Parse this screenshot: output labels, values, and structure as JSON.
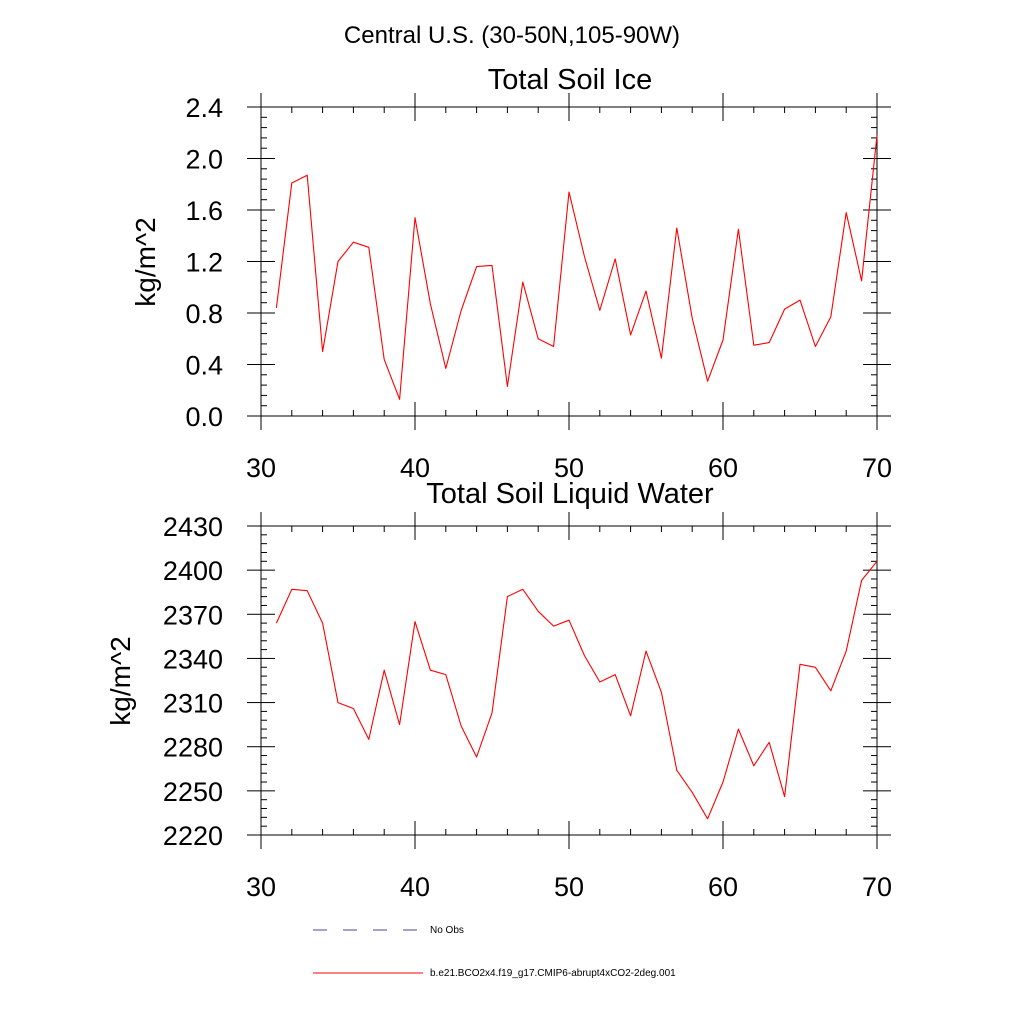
{
  "title": "Central U.S. (30-50N,105-90W)",
  "legend": [
    {
      "label": "No Obs",
      "style": "dashed",
      "color": "#4a4a8c"
    },
    {
      "label": "b.e21.BCO2x4.f19_g17.CMIP6-abrupt4xCO2-2deg.001",
      "style": "solid",
      "color": "#ff0000"
    }
  ],
  "chart_data": [
    {
      "type": "line",
      "title": "Total Soil Ice",
      "ylabel": "kg/m^2",
      "xlabel": "",
      "xlim": [
        30,
        70
      ],
      "ylim": [
        0.0,
        2.4
      ],
      "xticks": [
        30,
        40,
        50,
        60,
        70
      ],
      "xtick_labels": [
        "30",
        "40",
        "50",
        "60",
        "70"
      ],
      "yticks": [
        0.0,
        0.4,
        0.8,
        1.2,
        1.6,
        2.0,
        2.4
      ],
      "ytick_labels": [
        "0.0",
        "0.4",
        "0.8",
        "1.2",
        "1.6",
        "2.0",
        "2.4"
      ],
      "grid": false,
      "x": [
        31,
        32,
        33,
        34,
        35,
        36,
        37,
        38,
        39,
        40,
        41,
        42,
        43,
        44,
        45,
        46,
        47,
        48,
        49,
        50,
        51,
        52,
        53,
        54,
        55,
        56,
        57,
        58,
        59,
        60,
        61,
        62,
        63,
        64,
        65,
        66,
        67,
        68,
        69,
        70
      ],
      "series": [
        {
          "color": "#ff0000",
          "values": [
            0.84,
            1.81,
            1.87,
            0.5,
            1.2,
            1.35,
            1.31,
            0.44,
            0.13,
            1.54,
            0.87,
            0.37,
            0.82,
            1.16,
            1.17,
            0.23,
            1.04,
            0.6,
            0.54,
            1.74,
            1.24,
            0.82,
            1.22,
            0.63,
            0.97,
            0.45,
            1.46,
            0.76,
            0.27,
            0.59,
            1.45,
            0.55,
            0.57,
            0.83,
            0.9,
            0.54,
            0.77,
            1.58,
            1.05,
            2.18
          ]
        }
      ]
    },
    {
      "type": "line",
      "title": "Total Soil Liquid Water",
      "ylabel": "kg/m^2",
      "xlabel": "",
      "xlim": [
        30,
        70
      ],
      "ylim": [
        2220,
        2430
      ],
      "xticks": [
        30,
        40,
        50,
        60,
        70
      ],
      "xtick_labels": [
        "30",
        "40",
        "50",
        "60",
        "70"
      ],
      "yticks": [
        2220,
        2250,
        2280,
        2310,
        2340,
        2370,
        2400,
        2430
      ],
      "ytick_labels": [
        "2220",
        "2250",
        "2280",
        "2310",
        "2340",
        "2370",
        "2400",
        "2430"
      ],
      "grid": false,
      "x": [
        31,
        32,
        33,
        34,
        35,
        36,
        37,
        38,
        39,
        40,
        41,
        42,
        43,
        44,
        45,
        46,
        47,
        48,
        49,
        50,
        51,
        52,
        53,
        54,
        55,
        56,
        57,
        58,
        59,
        60,
        61,
        62,
        63,
        64,
        65,
        66,
        67,
        68,
        69,
        70
      ],
      "series": [
        {
          "color": "#ff0000",
          "values": [
            2364,
            2387,
            2386,
            2364,
            2310,
            2306,
            2285,
            2332,
            2295,
            2365,
            2332,
            2329,
            2294,
            2273,
            2303,
            2382,
            2387,
            2372,
            2362,
            2366,
            2342,
            2324,
            2329,
            2301,
            2345,
            2317,
            2264,
            2249,
            2231,
            2256,
            2292,
            2267,
            2283,
            2246,
            2336,
            2334,
            2318,
            2345,
            2393,
            2406
          ]
        }
      ]
    }
  ]
}
